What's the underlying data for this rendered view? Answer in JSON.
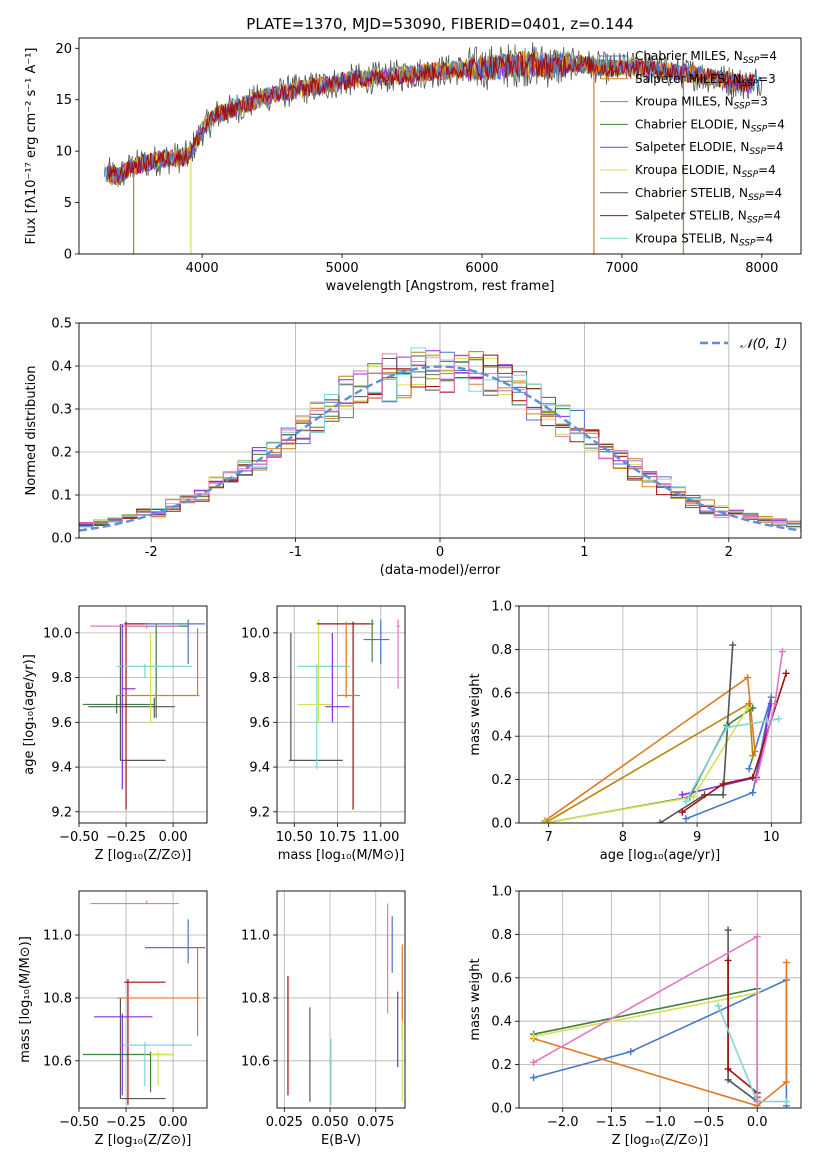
{
  "chart_data": [
    {
      "id": "spectrum",
      "type": "line",
      "title": "PLATE=1370, MJD=53090, FIBERID=0401, z=0.144",
      "xlabel": "wavelength [Angstrom, rest frame]",
      "ylabel": "Flux [fλ10⁻¹⁷ erg cm⁻² s⁻¹ A⁻¹]",
      "xlim": [
        3120,
        8280
      ],
      "ylim": [
        0,
        21
      ],
      "xticks": [
        4000,
        5000,
        6000,
        7000,
        8000
      ],
      "yticks": [
        0,
        5,
        10,
        15,
        20
      ],
      "legend_position": "top-right",
      "spectrum_anchor": {
        "x": [
          3300,
          3400,
          3500,
          3700,
          3900,
          4000,
          4100,
          4300,
          4500,
          4700,
          4900,
          5100,
          5300,
          5500,
          5700,
          5900,
          6100,
          6300,
          6500,
          6700,
          6900,
          7100,
          7300,
          7500,
          7700,
          7900,
          8000
        ],
        "y": [
          8.0,
          7.5,
          8.5,
          9.2,
          9.5,
          12.0,
          13.5,
          14.5,
          15.5,
          16.0,
          16.5,
          17.0,
          17.2,
          17.5,
          17.8,
          18.0,
          18.2,
          18.5,
          18.3,
          18.5,
          18.0,
          18.2,
          17.8,
          17.5,
          17.0,
          16.5,
          17.0
        ]
      },
      "series": [
        {
          "label": "Chabrier MILES, N",
          "sub": "SSP",
          "suffix": "=4",
          "color": "#4a78c8"
        },
        {
          "label": "Salpeter MILES, N",
          "sub": "SSP",
          "suffix": "=3",
          "color": "#e07a1f"
        },
        {
          "label": "Kroupa MILES, N",
          "sub": "SSP",
          "suffix": "=3",
          "color": "#b8860b"
        },
        {
          "label": "Chabrier ELODIE, N",
          "sub": "SSP",
          "suffix": "=4",
          "color": "#3f7f3f"
        },
        {
          "label": "Salpeter ELODIE, N",
          "sub": "SSP",
          "suffix": "=4",
          "color": "#8a2be2"
        },
        {
          "label": "Kroupa ELODIE, N",
          "sub": "SSP",
          "suffix": "=4",
          "color": "#d4e157"
        },
        {
          "label": "Chabrier STELIB, N",
          "sub": "SSP",
          "suffix": "=4",
          "color": "#555555"
        },
        {
          "label": "Salpeter STELIB, N",
          "sub": "SSP",
          "suffix": "=4",
          "color": "#a01010"
        },
        {
          "label": "Kroupa STELIB, N",
          "sub": "SSP",
          "suffix": "=4",
          "color": "#7fd6d6"
        }
      ]
    },
    {
      "id": "residuals",
      "type": "histogram",
      "xlabel": "(data-model)/error",
      "ylabel": "Normed distribution",
      "xlim": [
        -2.5,
        2.5
      ],
      "ylim": [
        0,
        0.5
      ],
      "xticks": [
        -2,
        -1,
        0,
        1,
        2
      ],
      "yticks": [
        0.0,
        0.1,
        0.2,
        0.3,
        0.4,
        0.5
      ],
      "grid": true,
      "legend_position": "top-right",
      "reference_label": "𝒩(0, 1)",
      "reference_color": "#5b8fd8",
      "series_colors": [
        "#4a78c8",
        "#e07a1f",
        "#b8860b",
        "#3f7f3f",
        "#8a2be2",
        "#d4e157",
        "#555555",
        "#a01010",
        "#7fd6d6",
        "#e377c2"
      ]
    },
    {
      "id": "age_vs_Z",
      "type": "errorbar",
      "xlabel": "Z [log₁₀(Z/Z⊙)]",
      "ylabel": "age  [log₁₀(age/yr)]",
      "xlim": [
        -0.5,
        0.18
      ],
      "ylim": [
        9.15,
        10.12
      ],
      "xticks": [
        -0.5,
        -0.25,
        0.0
      ],
      "xticklabels": [
        "−0.50",
        "−0.25",
        "0.00"
      ],
      "yticks": [
        9.2,
        9.4,
        9.6,
        9.8,
        10.0
      ],
      "grid": true,
      "points": [
        {
          "x": -0.09,
          "y": 10.03,
          "xl": -0.28,
          "xh": 0.08,
          "yl": 9.62,
          "yh": 10.04,
          "color": "#3f7f3f"
        },
        {
          "x": -0.1,
          "y": 9.67,
          "xl": -0.45,
          "xh": 0.01,
          "yl": 9.62,
          "yh": 9.71,
          "color": "#555555"
        },
        {
          "x": -0.3,
          "y": 9.68,
          "xl": -0.48,
          "xh": -0.1,
          "yl": 9.64,
          "yh": 9.72,
          "color": "#3f7f3f"
        },
        {
          "x": -0.25,
          "y": 10.04,
          "xl": -0.26,
          "xh": -0.12,
          "yl": 9.21,
          "yh": 10.05,
          "color": "#a01010"
        },
        {
          "x": -0.28,
          "y": 9.43,
          "xl": -0.28,
          "xh": -0.04,
          "yl": 9.43,
          "yh": 10.04,
          "color": "#555555"
        },
        {
          "x": 0.08,
          "y": 10.04,
          "xl": -0.15,
          "xh": 0.17,
          "yl": 9.86,
          "yh": 10.06,
          "color": "#4a78c8"
        },
        {
          "x": -0.14,
          "y": 10.03,
          "xl": -0.44,
          "xh": 0.03,
          "yl": 10.02,
          "yh": 10.04,
          "color": "#e377c2"
        },
        {
          "x": 0.13,
          "y": 9.72,
          "xl": -0.3,
          "xh": 0.14,
          "yl": 9.72,
          "yh": 10.02,
          "color": "#e07a1f"
        },
        {
          "x": -0.15,
          "y": 9.85,
          "xl": -0.3,
          "xh": 0.1,
          "yl": 9.8,
          "yh": 9.86,
          "color": "#7fd6d6"
        },
        {
          "x": -0.12,
          "y": 9.6,
          "xl": -0.13,
          "xh": -0.11,
          "yl": 9.6,
          "yh": 10.0,
          "color": "#d4e157"
        },
        {
          "x": -0.27,
          "y": 9.75,
          "xl": -0.27,
          "xh": -0.2,
          "yl": 9.3,
          "yh": 10.04,
          "color": "#8a2be2"
        }
      ]
    },
    {
      "id": "age_vs_mass",
      "type": "errorbar",
      "xlabel": "mass [log₁₀(M/M⊙)]",
      "ylabel": "",
      "xlim": [
        10.4,
        11.14
      ],
      "ylim": [
        9.15,
        10.12
      ],
      "xticks": [
        10.5,
        10.75,
        11.0
      ],
      "xticklabels": [
        "10.50",
        "10.75",
        "11.00"
      ],
      "yticks": [
        9.2,
        9.4,
        9.6,
        9.8,
        10.0
      ],
      "grid": true,
      "points": [
        {
          "x": 10.48,
          "y": 9.43,
          "xl": 10.47,
          "xh": 10.78,
          "yl": 9.43,
          "yh": 10.0,
          "color": "#555555"
        },
        {
          "x": 10.63,
          "y": 9.85,
          "xl": 10.52,
          "xh": 10.82,
          "yl": 9.39,
          "yh": 9.86,
          "color": "#7fd6d6"
        },
        {
          "x": 10.64,
          "y": 9.68,
          "xl": 10.52,
          "xh": 10.72,
          "yl": 9.6,
          "yh": 10.06,
          "color": "#d4e157"
        },
        {
          "x": 10.72,
          "y": 9.67,
          "xl": 10.68,
          "xh": 10.82,
          "yl": 9.6,
          "yh": 10.0,
          "color": "#8a2be2"
        },
        {
          "x": 10.84,
          "y": 10.04,
          "xl": 10.63,
          "xh": 10.94,
          "yl": 9.21,
          "yh": 10.05,
          "color": "#a01010"
        },
        {
          "x": 10.8,
          "y": 9.72,
          "xl": 10.75,
          "xh": 10.88,
          "yl": 9.71,
          "yh": 10.05,
          "color": "#e07a1f"
        },
        {
          "x": 11.0,
          "y": 9.97,
          "xl": 10.9,
          "xh": 11.05,
          "yl": 9.86,
          "yh": 10.06,
          "color": "#4a78c8"
        },
        {
          "x": 11.1,
          "y": 10.03,
          "xl": 11.09,
          "xh": 11.11,
          "yl": 9.75,
          "yh": 10.06,
          "color": "#e377c2"
        },
        {
          "x": 10.95,
          "y": 10.04,
          "xl": 10.94,
          "xh": 10.96,
          "yl": 9.87,
          "yh": 10.06,
          "color": "#3f7f3f"
        }
      ]
    },
    {
      "id": "weight_vs_age",
      "type": "line",
      "xlabel": "age  [log₁₀(age/yr)]",
      "ylabel": "mass weight",
      "xlim": [
        6.6,
        10.4
      ],
      "ylim": [
        0,
        1.0
      ],
      "xticks": [
        7,
        8,
        9,
        10
      ],
      "yticks": [
        0.0,
        0.2,
        0.4,
        0.6,
        0.8,
        1.0
      ],
      "grid": true,
      "series": [
        {
          "color": "#4a78c8",
          "x": [
            8.85,
            9.75,
            10.0,
            9.7
          ],
          "y": [
            0.02,
            0.14,
            0.58,
            0.25
          ]
        },
        {
          "color": "#e07a1f",
          "x": [
            6.95,
            9.68,
            9.78
          ],
          "y": [
            0.01,
            0.67,
            0.33
          ]
        },
        {
          "color": "#b8860b",
          "x": [
            6.95,
            9.7,
            9.75
          ],
          "y": [
            0.0,
            0.55,
            0.31
          ]
        },
        {
          "color": "#3f7f3f",
          "x": [
            6.95,
            8.9,
            9.4,
            9.75
          ],
          "y": [
            0.0,
            0.12,
            0.45,
            0.53
          ]
        },
        {
          "color": "#8a2be2",
          "x": [
            8.8,
            9.8,
            10.0
          ],
          "y": [
            0.13,
            0.21,
            0.55
          ]
        },
        {
          "color": "#d4e157",
          "x": [
            6.95,
            8.95,
            9.68
          ],
          "y": [
            0.0,
            0.12,
            0.53
          ]
        },
        {
          "color": "#555555",
          "x": [
            8.5,
            9.1,
            9.35,
            9.48
          ],
          "y": [
            0.0,
            0.13,
            0.13,
            0.82
          ]
        },
        {
          "color": "#a01010",
          "x": [
            8.8,
            9.35,
            9.75,
            10.2
          ],
          "y": [
            0.05,
            0.18,
            0.21,
            0.69
          ]
        },
        {
          "color": "#7fd6d6",
          "x": [
            8.85,
            9.4,
            9.95,
            10.1
          ],
          "y": [
            0.1,
            0.44,
            0.47,
            0.48
          ]
        },
        {
          "color": "#e377c2",
          "x": [
            9.8,
            10.05,
            10.15
          ],
          "y": [
            0.2,
            0.55,
            0.79
          ]
        }
      ]
    },
    {
      "id": "mass_vs_Z",
      "type": "errorbar",
      "xlabel": "Z [log₁₀(Z/Z⊙)]",
      "ylabel": "mass [log₁₀(M/M⊙)]",
      "xlim": [
        -0.5,
        0.18
      ],
      "ylim": [
        10.45,
        11.14
      ],
      "xticks": [
        -0.5,
        -0.25,
        0.0
      ],
      "xticklabels": [
        "−0.50",
        "−0.25",
        "0.00"
      ],
      "yticks": [
        10.6,
        10.8,
        11.0
      ],
      "grid": true,
      "points": [
        {
          "x": -0.28,
          "y": 10.48,
          "xl": -0.28,
          "xh": -0.04,
          "yl": 10.48,
          "yh": 10.8,
          "color": "#555555"
        },
        {
          "x": -0.12,
          "y": 10.62,
          "xl": -0.48,
          "xh": 0.0,
          "yl": 10.5,
          "yh": 10.63,
          "color": "#3f7f3f"
        },
        {
          "x": -0.24,
          "y": 10.85,
          "xl": -0.26,
          "xh": -0.04,
          "yl": 10.46,
          "yh": 10.86,
          "color": "#a01010"
        },
        {
          "x": 0.08,
          "y": 10.96,
          "xl": -0.15,
          "xh": 0.17,
          "yl": 10.91,
          "yh": 11.05,
          "color": "#4a78c8"
        },
        {
          "x": -0.14,
          "y": 11.1,
          "xl": -0.44,
          "xh": 0.03,
          "yl": 11.1,
          "yh": 11.11,
          "color": "#e377c2"
        },
        {
          "x": 0.13,
          "y": 10.8,
          "xl": -0.3,
          "xh": 0.14,
          "yl": 10.68,
          "yh": 10.96,
          "color": "#e07a1f"
        },
        {
          "x": -0.15,
          "y": 10.65,
          "xl": -0.28,
          "xh": 0.1,
          "yl": 10.52,
          "yh": 10.66,
          "color": "#7fd6d6"
        },
        {
          "x": -0.27,
          "y": 10.74,
          "xl": -0.42,
          "xh": -0.11,
          "yl": 10.49,
          "yh": 10.75,
          "color": "#8a2be2"
        },
        {
          "x": -0.08,
          "y": 10.62,
          "xl": -0.12,
          "xh": 0.0,
          "yl": 10.52,
          "yh": 10.63,
          "color": "#d4e157"
        }
      ]
    },
    {
      "id": "mass_vs_EBV",
      "type": "errorbar",
      "xlabel": "E(B-V)",
      "ylabel": "",
      "xlim": [
        0.021,
        0.091
      ],
      "ylim": [
        10.45,
        11.14
      ],
      "xticks": [
        0.025,
        0.05,
        0.075
      ],
      "xticklabels": [
        "0.025",
        "0.050",
        "0.075"
      ],
      "yticks": [
        10.6,
        10.8,
        11.0
      ],
      "grid": true,
      "points": [
        {
          "x": 0.027,
          "y": 10.68,
          "yl": 10.49,
          "yh": 10.87,
          "color": "#a01010"
        },
        {
          "x": 0.039,
          "y": 10.6,
          "yl": 10.47,
          "yh": 10.77,
          "color": "#555555"
        },
        {
          "x": 0.0505,
          "y": 10.57,
          "yl": 10.46,
          "yh": 10.67,
          "color": "#7fd6d6"
        },
        {
          "x": 0.0815,
          "y": 10.93,
          "yl": 10.75,
          "yh": 11.1,
          "color": "#e377c2"
        },
        {
          "x": 0.084,
          "y": 10.97,
          "yl": 10.88,
          "yh": 11.06,
          "color": "#4a78c8"
        },
        {
          "x": 0.087,
          "y": 10.72,
          "yl": 10.58,
          "yh": 10.82,
          "color": "#8a2be2"
        },
        {
          "x": 0.0895,
          "y": 10.82,
          "yl": 10.67,
          "yh": 10.97,
          "color": "#e07a1f"
        },
        {
          "x": 0.0895,
          "y": 10.6,
          "yl": 10.47,
          "yh": 10.73,
          "color": "#d4e157"
        }
      ]
    },
    {
      "id": "weight_vs_Z",
      "type": "line",
      "xlabel": "Z [log₁₀(Z/Z⊙)]",
      "ylabel": "mass weight",
      "xlim": [
        -2.45,
        0.45
      ],
      "ylim": [
        0,
        1.0
      ],
      "xticks": [
        -2.0,
        -1.5,
        -1.0,
        -0.5,
        0.0
      ],
      "xticklabels": [
        "−2.0",
        "−1.5",
        "−1.0",
        "−0.5",
        "0.0"
      ],
      "yticks": [
        0.0,
        0.2,
        0.4,
        0.6,
        0.8,
        1.0
      ],
      "grid": true,
      "series": [
        {
          "color": "#4a78c8",
          "x": [
            -2.3,
            -1.3,
            0.3,
            0.3
          ],
          "y": [
            0.14,
            0.26,
            0.59,
            0.01
          ]
        },
        {
          "color": "#e07a1f",
          "x": [
            -2.3,
            0.0,
            0.3,
            0.3
          ],
          "y": [
            0.32,
            0.01,
            0.12,
            0.67
          ]
        },
        {
          "color": "#3f7f3f",
          "x": [
            -2.3,
            0.0,
            0.0
          ],
          "y": [
            0.34,
            0.55,
            0.05
          ]
        },
        {
          "color": "#d4e157",
          "x": [
            -2.3,
            0.0,
            0.0
          ],
          "y": [
            0.33,
            0.53,
            0.04
          ]
        },
        {
          "color": "#555555",
          "x": [
            -0.3,
            -0.3,
            0.0
          ],
          "y": [
            0.82,
            0.13,
            0.03
          ]
        },
        {
          "color": "#a01010",
          "x": [
            -0.3,
            -0.3,
            0.0
          ],
          "y": [
            0.68,
            0.18,
            0.07
          ]
        },
        {
          "color": "#7fd6d6",
          "x": [
            -0.4,
            0.0,
            0.3
          ],
          "y": [
            0.47,
            0.03,
            0.03
          ]
        },
        {
          "color": "#e377c2",
          "x": [
            -2.3,
            0.0,
            0.0
          ],
          "y": [
            0.21,
            0.79,
            0.03
          ]
        }
      ]
    }
  ]
}
